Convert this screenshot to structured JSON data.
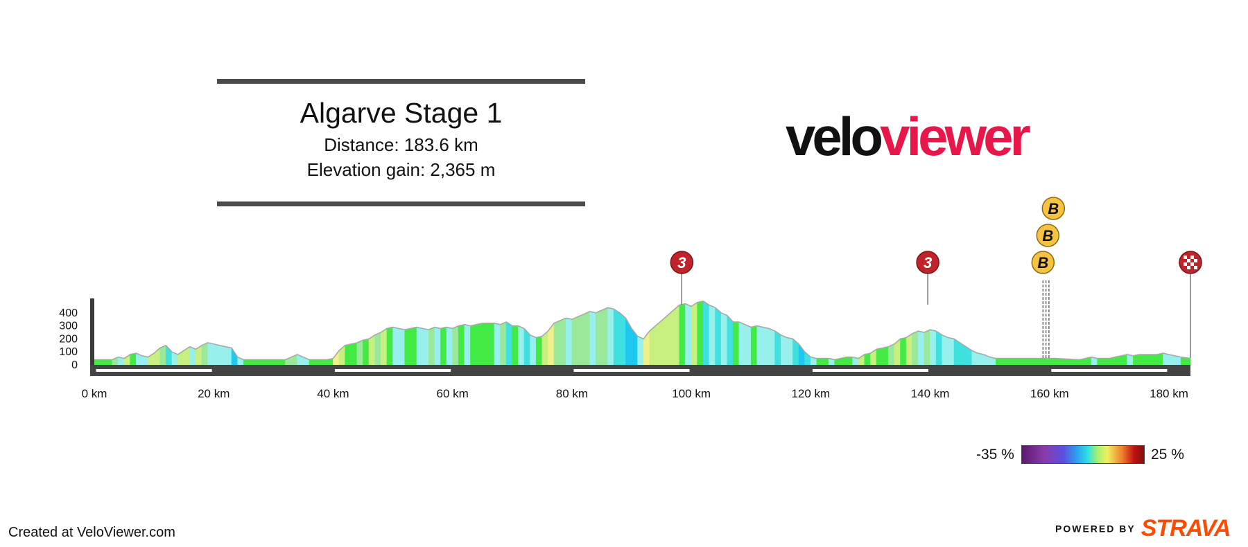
{
  "header": {
    "title": "Algarve Stage 1",
    "distance": "Distance: 183.6 km",
    "elevation": "Elevation gain: 2,365 m"
  },
  "logo": {
    "part1": "velo",
    "part2": "viewer"
  },
  "credit": "Created at VeloViewer.com",
  "strava": {
    "powered": "POWERED BY",
    "brand": "STRAVA"
  },
  "legend": {
    "min": "-35 %",
    "max": "25 %"
  },
  "chart_data": {
    "type": "area",
    "title": "Algarve Stage 1",
    "xlabel": "",
    "ylabel": "",
    "xlim": [
      0,
      183.6
    ],
    "ylim": [
      -30,
      500
    ],
    "x_ticks": [
      {
        "value": 0,
        "label": "0 km"
      },
      {
        "value": 20,
        "label": "20 km"
      },
      {
        "value": 40,
        "label": "40 km"
      },
      {
        "value": 60,
        "label": "60 km"
      },
      {
        "value": 80,
        "label": "80 km"
      },
      {
        "value": 100,
        "label": "100 km"
      },
      {
        "value": 120,
        "label": "120 km"
      },
      {
        "value": 140,
        "label": "140 km"
      },
      {
        "value": 160,
        "label": "160 km"
      },
      {
        "value": 180,
        "label": "180 km"
      }
    ],
    "y_ticks": [
      {
        "value": 0,
        "label": "0"
      },
      {
        "value": 100,
        "label": "100"
      },
      {
        "value": 200,
        "label": "200"
      },
      {
        "value": 300,
        "label": "300"
      },
      {
        "value": 400,
        "label": "400"
      }
    ],
    "profile": [
      [
        0,
        40
      ],
      [
        3,
        40
      ],
      [
        4,
        60
      ],
      [
        5,
        50
      ],
      [
        6,
        80
      ],
      [
        7,
        90
      ],
      [
        8,
        70
      ],
      [
        9,
        60
      ],
      [
        10,
        90
      ],
      [
        11,
        130
      ],
      [
        12,
        150
      ],
      [
        13,
        100
      ],
      [
        14,
        80
      ],
      [
        15,
        110
      ],
      [
        16,
        140
      ],
      [
        17,
        120
      ],
      [
        18,
        150
      ],
      [
        19,
        170
      ],
      [
        20,
        160
      ],
      [
        21,
        150
      ],
      [
        22,
        140
      ],
      [
        23,
        130
      ],
      [
        24,
        60
      ],
      [
        25,
        40
      ],
      [
        31,
        40
      ],
      [
        32,
        40
      ],
      [
        33,
        60
      ],
      [
        34,
        80
      ],
      [
        35,
        60
      ],
      [
        36,
        40
      ],
      [
        39,
        40
      ],
      [
        40,
        50
      ],
      [
        41,
        110
      ],
      [
        42,
        150
      ],
      [
        43,
        160
      ],
      [
        44,
        170
      ],
      [
        45,
        190
      ],
      [
        46,
        200
      ],
      [
        47,
        230
      ],
      [
        48,
        250
      ],
      [
        49,
        280
      ],
      [
        50,
        290
      ],
      [
        51,
        280
      ],
      [
        52,
        270
      ],
      [
        53,
        280
      ],
      [
        54,
        290
      ],
      [
        55,
        280
      ],
      [
        56,
        270
      ],
      [
        57,
        290
      ],
      [
        58,
        280
      ],
      [
        59,
        290
      ],
      [
        60,
        280
      ],
      [
        61,
        300
      ],
      [
        62,
        310
      ],
      [
        63,
        300
      ],
      [
        64,
        310
      ],
      [
        65,
        320
      ],
      [
        66,
        320
      ],
      [
        67,
        320
      ],
      [
        68,
        310
      ],
      [
        69,
        330
      ],
      [
        70,
        300
      ],
      [
        71,
        300
      ],
      [
        72,
        280
      ],
      [
        73,
        230
      ],
      [
        74,
        210
      ],
      [
        75,
        220
      ],
      [
        76,
        260
      ],
      [
        77,
        320
      ],
      [
        78,
        340
      ],
      [
        79,
        360
      ],
      [
        80,
        350
      ],
      [
        81,
        370
      ],
      [
        82,
        390
      ],
      [
        83,
        410
      ],
      [
        84,
        400
      ],
      [
        85,
        420
      ],
      [
        86,
        440
      ],
      [
        87,
        430
      ],
      [
        88,
        400
      ],
      [
        89,
        360
      ],
      [
        90,
        280
      ],
      [
        91,
        220
      ],
      [
        92,
        200
      ],
      [
        93,
        260
      ],
      [
        94,
        300
      ],
      [
        95,
        340
      ],
      [
        96,
        380
      ],
      [
        97,
        420
      ],
      [
        98,
        460
      ],
      [
        99,
        470
      ],
      [
        100,
        450
      ],
      [
        101,
        480
      ],
      [
        102,
        490
      ],
      [
        103,
        460
      ],
      [
        104,
        440
      ],
      [
        105,
        400
      ],
      [
        106,
        380
      ],
      [
        107,
        330
      ],
      [
        108,
        330
      ],
      [
        109,
        310
      ],
      [
        110,
        290
      ],
      [
        111,
        300
      ],
      [
        112,
        290
      ],
      [
        113,
        280
      ],
      [
        114,
        260
      ],
      [
        115,
        230
      ],
      [
        116,
        210
      ],
      [
        117,
        200
      ],
      [
        118,
        160
      ],
      [
        119,
        100
      ],
      [
        120,
        60
      ],
      [
        121,
        50
      ],
      [
        123,
        50
      ],
      [
        124,
        40
      ],
      [
        125,
        50
      ],
      [
        126,
        60
      ],
      [
        127,
        60
      ],
      [
        128,
        50
      ],
      [
        129,
        80
      ],
      [
        130,
        90
      ],
      [
        131,
        120
      ],
      [
        132,
        130
      ],
      [
        133,
        140
      ],
      [
        134,
        160
      ],
      [
        135,
        200
      ],
      [
        136,
        210
      ],
      [
        137,
        240
      ],
      [
        138,
        260
      ],
      [
        139,
        250
      ],
      [
        140,
        270
      ],
      [
        141,
        260
      ],
      [
        142,
        230
      ],
      [
        143,
        210
      ],
      [
        144,
        200
      ],
      [
        145,
        170
      ],
      [
        146,
        140
      ],
      [
        147,
        110
      ],
      [
        148,
        90
      ],
      [
        149,
        80
      ],
      [
        150,
        60
      ],
      [
        151,
        50
      ],
      [
        155,
        50
      ],
      [
        158,
        50
      ],
      [
        161,
        50
      ],
      [
        165,
        40
      ],
      [
        166,
        50
      ],
      [
        167,
        60
      ],
      [
        168,
        50
      ],
      [
        170,
        50
      ],
      [
        171,
        60
      ],
      [
        172,
        70
      ],
      [
        173,
        80
      ],
      [
        174,
        70
      ],
      [
        175,
        80
      ],
      [
        176,
        80
      ],
      [
        177,
        80
      ],
      [
        178,
        80
      ],
      [
        179,
        90
      ],
      [
        180,
        80
      ],
      [
        181,
        70
      ],
      [
        182,
        60
      ],
      [
        183.6,
        50
      ]
    ],
    "climbs": [
      {
        "km": 98.4,
        "label": "3"
      },
      {
        "km": 139.6,
        "label": "3"
      }
    ],
    "bonus_sprints": [
      {
        "km": 158.9,
        "label": "B"
      },
      {
        "km": 159.4,
        "label": "B"
      },
      {
        "km": 159.9,
        "label": "B"
      }
    ],
    "finish_km": 183.6,
    "gradient_legend": {
      "min_label": "-35 %",
      "max_label": "25 %"
    }
  }
}
